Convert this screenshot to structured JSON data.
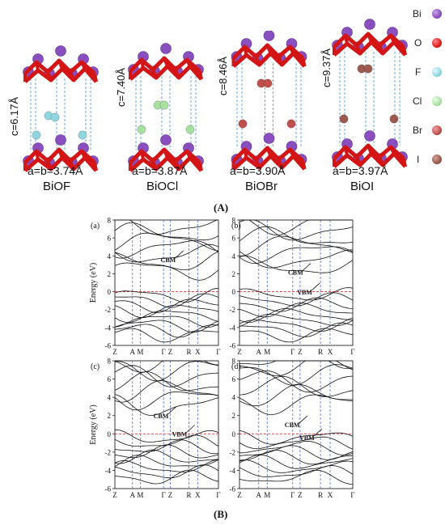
{
  "figure_a": {
    "label": "(A)",
    "structures": [
      {
        "compound": "BiOF",
        "c": "c=6.17Å",
        "ab": "a=b=3.74Å",
        "halogen_color": "#8fd6e0",
        "halogen_count": 4
      },
      {
        "compound": "BiOCl",
        "c": "c=7.40Å",
        "ab": "a=b=3.87Å",
        "halogen_color": "#a8e0a0",
        "halogen_count": 4
      },
      {
        "compound": "BiOBr",
        "c": "c=8.46Å",
        "ab": "a=b=3.90Å",
        "halogen_color": "#c0504d",
        "halogen_count": 4
      },
      {
        "compound": "BiOI",
        "c": "c=9.37Å",
        "ab": "a=b=3.97Å",
        "halogen_color": "#9c5a4e",
        "halogen_count": 4
      }
    ],
    "legend": [
      {
        "label": "Bi",
        "color": "#8a4fbf"
      },
      {
        "label": "O",
        "color": "#e01b1b"
      },
      {
        "label": "F",
        "color": "#8fd6e0"
      },
      {
        "label": "Cl",
        "color": "#a8e0a0"
      },
      {
        "label": "Br",
        "color": "#c0504d"
      },
      {
        "label": "I",
        "color": "#9c5a4e"
      }
    ]
  },
  "figure_b": {
    "label": "(B)",
    "ylabel": "Energy (eV)",
    "yticks": [
      "8",
      "6",
      "4",
      "2",
      "0",
      "-2",
      "-4",
      "-6"
    ],
    "ylim": [
      -6,
      8
    ],
    "kpath": [
      "Z",
      "A",
      "M",
      "Γ",
      "Z",
      "R",
      "X",
      "Γ"
    ],
    "kpos": [
      0,
      0.17,
      0.245,
      0.47,
      0.535,
      0.715,
      0.8,
      1.0
    ],
    "panels": [
      {
        "id": "(a)",
        "annotations": [
          {
            "text": "CBM",
            "x": 0.52,
            "y": 4.2
          }
        ]
      },
      {
        "id": "(b)",
        "annotations": [
          {
            "text": "CBM",
            "x": 0.5,
            "y": 2.8
          },
          {
            "text": "VBM",
            "x": 0.58,
            "y": 0.6
          }
        ]
      },
      {
        "id": "(c)",
        "annotations": [
          {
            "text": "CBM",
            "x": 0.45,
            "y": 2.6
          },
          {
            "text": "VBM",
            "x": 0.63,
            "y": 0.6
          }
        ]
      },
      {
        "id": "(d)",
        "annotations": [
          {
            "text": "CBM",
            "x": 0.47,
            "y": 1.6
          },
          {
            "text": "VBM",
            "x": 0.6,
            "y": 0.2
          }
        ]
      }
    ]
  }
}
